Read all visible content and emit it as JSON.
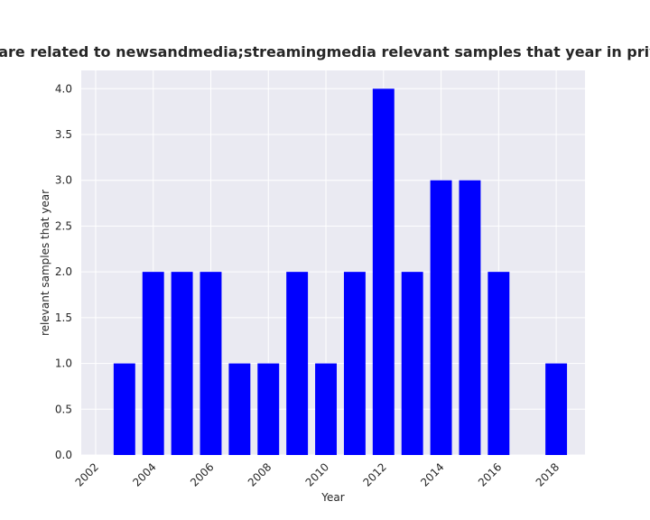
{
  "chart_data": {
    "type": "bar",
    "title": "Categories are related to newsandmedia;streamingmedia relevant samples that year in privacy policies",
    "xlabel": "Year",
    "ylabel": "relevant samples that year",
    "x": [
      2003,
      2004,
      2005,
      2006,
      2007,
      2008,
      2009,
      2010,
      2011,
      2012,
      2013,
      2014,
      2015,
      2016,
      2018
    ],
    "values": [
      1,
      2,
      2,
      2,
      1,
      1,
      2,
      1,
      2,
      4,
      2,
      3,
      3,
      2,
      1
    ],
    "xlim": [
      2001.5,
      2019.0
    ],
    "ylim": [
      0,
      4.2
    ],
    "xticks": [
      "2002",
      "2004",
      "2006",
      "2008",
      "2010",
      "2012",
      "2014",
      "2016",
      "2018"
    ],
    "yticks": [
      "0.0",
      "0.5",
      "1.0",
      "1.5",
      "2.0",
      "2.5",
      "3.0",
      "3.5",
      "4.0"
    ],
    "grid": true,
    "colors": {
      "bar": "#0000ff",
      "plot_bg": "#eaeaf2",
      "grid": "#ffffff"
    }
  }
}
